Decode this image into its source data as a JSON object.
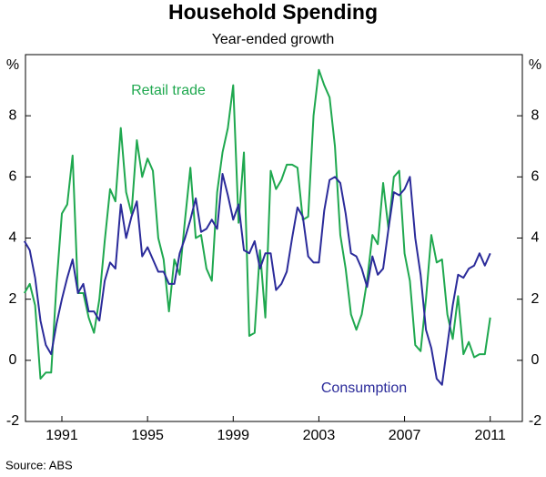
{
  "chart_data": {
    "type": "line",
    "title": "Household Spending",
    "subtitle": "Year-ended growth",
    "y_label": "%",
    "source": "Source: ABS",
    "x": [
      1989.25,
      1989.5,
      1989.75,
      1990,
      1990.25,
      1990.5,
      1990.75,
      1991,
      1991.25,
      1991.5,
      1991.75,
      1992,
      1992.25,
      1992.5,
      1992.75,
      1993,
      1993.25,
      1993.5,
      1993.75,
      1994,
      1994.25,
      1994.5,
      1994.75,
      1995,
      1995.25,
      1995.5,
      1995.75,
      1996,
      1996.25,
      1996.5,
      1996.75,
      1997,
      1997.25,
      1997.5,
      1997.75,
      1998,
      1998.25,
      1998.5,
      1998.75,
      1999,
      1999.25,
      1999.5,
      1999.75,
      2000,
      2000.25,
      2000.5,
      2000.75,
      2001,
      2001.25,
      2001.5,
      2001.75,
      2002,
      2002.25,
      2002.5,
      2002.75,
      2003,
      2003.25,
      2003.5,
      2003.75,
      2004,
      2004.25,
      2004.5,
      2004.75,
      2005,
      2005.25,
      2005.5,
      2005.75,
      2006,
      2006.25,
      2006.5,
      2006.75,
      2007,
      2007.25,
      2007.5,
      2007.75,
      2008,
      2008.25,
      2008.5,
      2008.75,
      2009,
      2009.25,
      2009.5,
      2009.75,
      2010,
      2010.25,
      2010.5,
      2010.75,
      2011
    ],
    "series": [
      {
        "name": "Retail trade",
        "color": "#1fa84f",
        "values": [
          2.2,
          2.5,
          1.8,
          -0.6,
          -0.4,
          -0.4,
          2.5,
          4.8,
          5.1,
          6.7,
          2.2,
          2.2,
          1.4,
          0.9,
          2.0,
          3.9,
          5.6,
          5.2,
          7.6,
          5.5,
          4.8,
          7.2,
          6.0,
          6.6,
          6.2,
          4.0,
          3.3,
          1.6,
          3.3,
          2.8,
          4.6,
          6.3,
          4.0,
          4.1,
          3.0,
          2.6,
          5.5,
          6.8,
          7.6,
          9.0,
          4.5,
          6.8,
          0.8,
          0.9,
          3.6,
          1.4,
          6.2,
          5.6,
          5.9,
          6.4,
          6.4,
          6.3,
          4.6,
          4.7,
          8.0,
          9.5,
          9.0,
          8.6,
          7.0,
          4.1,
          3.0,
          1.5,
          1.0,
          1.5,
          2.6,
          4.1,
          3.8,
          5.8,
          4.3,
          6.0,
          6.2,
          3.5,
          2.6,
          0.5,
          0.3,
          2.0,
          4.1,
          3.2,
          3.3,
          1.5,
          0.7,
          2.1,
          0.2,
          0.6,
          0.1,
          0.2,
          0.2,
          1.4
        ]
      },
      {
        "name": "Consumption",
        "color": "#2b2b9a",
        "values": [
          3.9,
          3.6,
          2.7,
          1.3,
          0.5,
          0.2,
          1.2,
          2.0,
          2.7,
          3.3,
          2.2,
          2.5,
          1.6,
          1.6,
          1.3,
          2.6,
          3.2,
          3.0,
          5.1,
          4.0,
          4.7,
          5.2,
          3.4,
          3.7,
          3.3,
          2.9,
          2.9,
          2.5,
          2.5,
          3.5,
          4.0,
          4.6,
          5.3,
          4.2,
          4.3,
          4.6,
          4.3,
          6.1,
          5.4,
          4.6,
          5.1,
          3.6,
          3.5,
          3.9,
          3.0,
          3.5,
          3.5,
          2.3,
          2.5,
          2.9,
          4.0,
          5.0,
          4.7,
          3.4,
          3.2,
          3.2,
          4.9,
          5.9,
          6.0,
          5.8,
          4.8,
          3.5,
          3.4,
          3.0,
          2.4,
          3.4,
          2.8,
          3.0,
          4.3,
          5.5,
          5.4,
          5.6,
          6.0,
          4.0,
          2.8,
          1.0,
          0.4,
          -0.6,
          -0.8,
          0.5,
          1.8,
          2.8,
          2.7,
          3.0,
          3.1,
          3.5,
          3.1,
          3.5
        ]
      }
    ],
    "xlim": [
      1989.3,
      2012.5
    ],
    "xticks": [
      1991,
      1995,
      1999,
      2003,
      2007,
      2011
    ],
    "ylim": [
      -2,
      10
    ],
    "yticks": [
      -2,
      0,
      2,
      4,
      6,
      8
    ],
    "grid": false
  }
}
